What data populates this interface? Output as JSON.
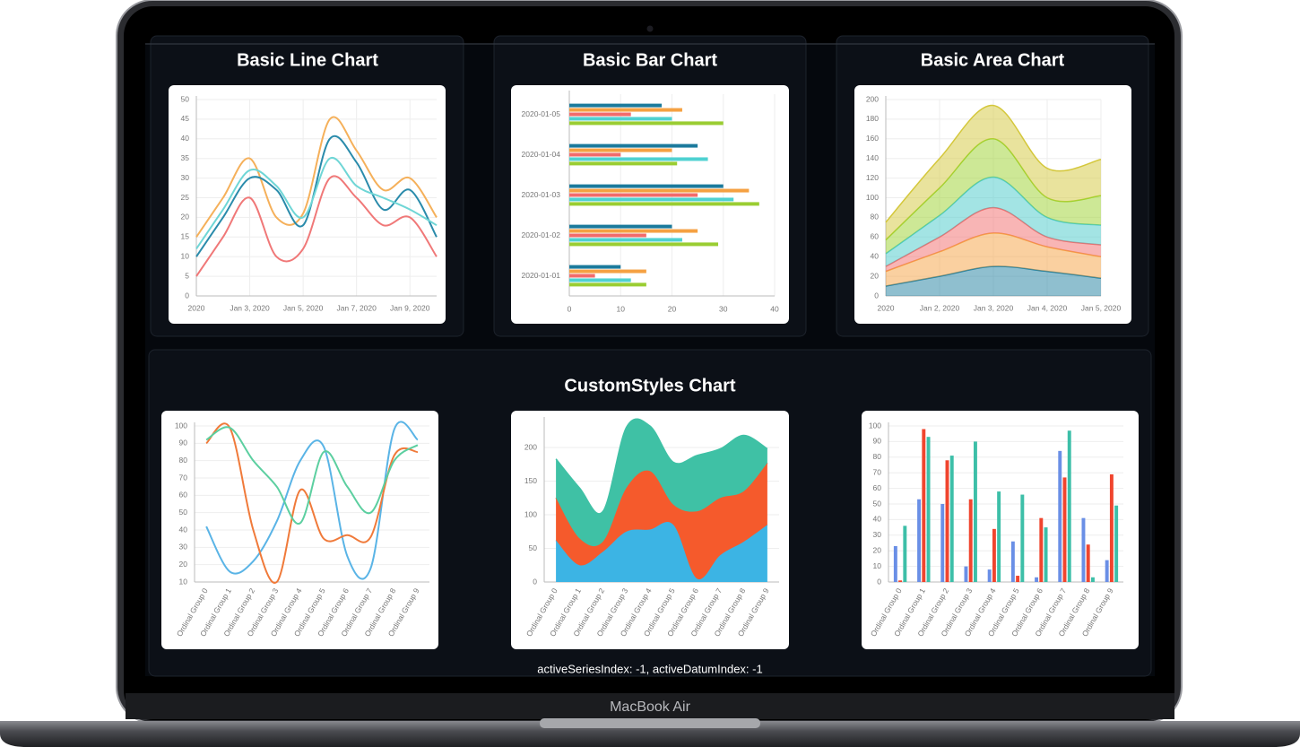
{
  "device_label": "MacBook Air",
  "section_title": "CustomStyles Chart",
  "status": "activeSeriesIndex: -1, activeDatumIndex: -1",
  "chart_data": [
    {
      "type": "line",
      "title": "Basic Line Chart",
      "x": [
        "2020-01-01",
        "2020-01-02",
        "2020-01-03",
        "2020-01-04",
        "2020-01-05",
        "2020-01-06",
        "2020-01-07",
        "2020-01-08",
        "2020-01-09",
        "2020-01-10"
      ],
      "xlim": [
        "2020-01-01",
        "2020-01-10"
      ],
      "xticks": [
        {
          "value": "2020-01-01",
          "label": "2020"
        },
        {
          "value": "2020-01-03",
          "label": "Jan 3, 2020"
        },
        {
          "value": "2020-01-05",
          "label": "Jan 5, 2020"
        },
        {
          "value": "2020-01-07",
          "label": "Jan 7, 2020"
        },
        {
          "value": "2020-01-09",
          "label": "Jan 9, 2020"
        }
      ],
      "ylim": [
        0,
        50
      ],
      "yticks": [
        0,
        5,
        10,
        15,
        20,
        25,
        30,
        35,
        40,
        45,
        50
      ],
      "grid": true,
      "series": [
        {
          "color": "#f5b05a",
          "values": [
            15,
            25,
            35,
            20,
            21,
            45,
            37,
            27,
            30,
            20
          ]
        },
        {
          "color": "#2a8bab",
          "values": [
            10,
            20,
            30,
            27,
            18,
            40,
            34,
            22,
            27,
            15
          ]
        },
        {
          "color": "#6fd6d6",
          "values": [
            12,
            22,
            32,
            28,
            20,
            35,
            28,
            25,
            22,
            18
          ]
        },
        {
          "color": "#f07878",
          "values": [
            5,
            15,
            25,
            10,
            12,
            30,
            25,
            18,
            20,
            10
          ]
        }
      ]
    },
    {
      "type": "bar",
      "orientation": "horizontal",
      "title": "Basic Bar Chart",
      "categories": [
        "2020-01-01",
        "2020-01-02",
        "2020-01-03",
        "2020-01-04",
        "2020-01-05"
      ],
      "xlim": [
        0,
        40
      ],
      "xticks": [
        0,
        10,
        20,
        30,
        40
      ],
      "grid": true,
      "series": [
        {
          "color": "#1b7a9c",
          "values": [
            10,
            20,
            30,
            25,
            18
          ]
        },
        {
          "color": "#f5a142",
          "values": [
            15,
            25,
            35,
            20,
            22
          ]
        },
        {
          "color": "#f26b6b",
          "values": [
            5,
            15,
            25,
            10,
            12
          ]
        },
        {
          "color": "#4fd1d1",
          "values": [
            12,
            22,
            32,
            27,
            20
          ]
        },
        {
          "color": "#9acd32",
          "values": [
            15,
            29,
            37,
            21,
            30
          ]
        }
      ]
    },
    {
      "type": "area",
      "stacked": true,
      "title": "Basic Area Chart",
      "x": [
        "2020-01-01",
        "2020-01-02",
        "2020-01-03",
        "2020-01-04",
        "2020-01-05"
      ],
      "xlim": [
        "2020-01-01",
        "2020-01-05"
      ],
      "xticks": [
        {
          "value": "2020-01-01",
          "label": "2020"
        },
        {
          "value": "2020-01-02",
          "label": "Jan 2, 2020"
        },
        {
          "value": "2020-01-03",
          "label": "Jan 3, 2020"
        },
        {
          "value": "2020-01-04",
          "label": "Jan 4, 2020"
        },
        {
          "value": "2020-01-05",
          "label": "Jan 5, 2020"
        }
      ],
      "ylim": [
        0,
        200
      ],
      "yticks": [
        0,
        20,
        40,
        60,
        80,
        100,
        120,
        140,
        160,
        180,
        200
      ],
      "grid": true,
      "series": [
        {
          "color": "#1f7fa0",
          "values": [
            10,
            20,
            30,
            25,
            18
          ]
        },
        {
          "color": "#f5a142",
          "values": [
            15,
            25,
            34,
            25,
            22
          ]
        },
        {
          "color": "#f26b6b",
          "values": [
            5,
            15,
            26,
            10,
            12
          ]
        },
        {
          "color": "#48c9c9",
          "values": [
            13,
            22,
            31,
            20,
            20
          ]
        },
        {
          "color": "#9bd22e",
          "values": [
            14,
            28,
            39,
            20,
            30
          ]
        },
        {
          "color": "#d4c73b",
          "values": [
            18,
            30,
            34,
            30,
            37
          ]
        }
      ]
    },
    {
      "type": "line",
      "categories": [
        "Ordinal Group 0",
        "Ordinal Group 1",
        "Ordinal Group 2",
        "Ordinal Group 3",
        "Ordinal Group 4",
        "Ordinal Group 5",
        "Ordinal Group 6",
        "Ordinal Group 7",
        "Ordinal Group 8",
        "Ordinal Group 9"
      ],
      "ylim": [
        10,
        100
      ],
      "yticks": [
        10,
        20,
        30,
        40,
        50,
        60,
        70,
        80,
        90,
        100
      ],
      "grid": true,
      "series": [
        {
          "color": "#5ab4e6",
          "values": [
            42,
            16,
            22,
            45,
            80,
            88,
            25,
            18,
            98,
            92
          ]
        },
        {
          "color": "#f07a3a",
          "values": [
            90,
            99,
            40,
            10,
            63,
            35,
            37,
            36,
            83,
            85
          ]
        },
        {
          "color": "#5ccfa0",
          "values": [
            92,
            99,
            80,
            65,
            44,
            85,
            65,
            50,
            80,
            89
          ]
        }
      ]
    },
    {
      "type": "area",
      "stacked": true,
      "categories": [
        "Ordinal Group 0",
        "Ordinal Group 1",
        "Ordinal Group 2",
        "Ordinal Group 3",
        "Ordinal Group 4",
        "Ordinal Group 5",
        "Ordinal Group 6",
        "Ordinal Group 7",
        "Ordinal Group 8",
        "Ordinal Group 9"
      ],
      "ylim": [
        0,
        240
      ],
      "yticks": [
        0,
        50,
        100,
        150,
        200
      ],
      "grid": true,
      "series": [
        {
          "color": "#3cb4e4",
          "values": [
            62,
            25,
            45,
            75,
            78,
            85,
            5,
            40,
            60,
            85
          ]
        },
        {
          "color": "#f55a2c",
          "values": [
            63,
            40,
            15,
            65,
            87,
            30,
            100,
            85,
            75,
            92
          ]
        },
        {
          "color": "#3fc1a5",
          "values": [
            58,
            75,
            45,
            90,
            67,
            63,
            83,
            73,
            83,
            21
          ]
        }
      ]
    },
    {
      "type": "bar",
      "categories": [
        "Ordinal Group 0",
        "Ordinal Group 1",
        "Ordinal Group 2",
        "Ordinal Group 3",
        "Ordinal Group 4",
        "Ordinal Group 5",
        "Ordinal Group 6",
        "Ordinal Group 7",
        "Ordinal Group 8",
        "Ordinal Group 9"
      ],
      "ylim": [
        0,
        100
      ],
      "yticks": [
        0,
        10,
        20,
        30,
        40,
        50,
        60,
        70,
        80,
        90,
        100
      ],
      "grid": true,
      "series": [
        {
          "color": "#6a8fe6",
          "values": [
            23,
            53,
            50,
            10,
            8,
            26,
            3,
            84,
            41,
            14
          ]
        },
        {
          "color": "#f0452e",
          "values": [
            1,
            98,
            78,
            53,
            34,
            4,
            41,
            67,
            24,
            69
          ]
        },
        {
          "color": "#3dbfa8",
          "values": [
            36,
            93,
            81,
            90,
            58,
            56,
            35,
            97,
            3,
            49
          ]
        }
      ]
    }
  ]
}
